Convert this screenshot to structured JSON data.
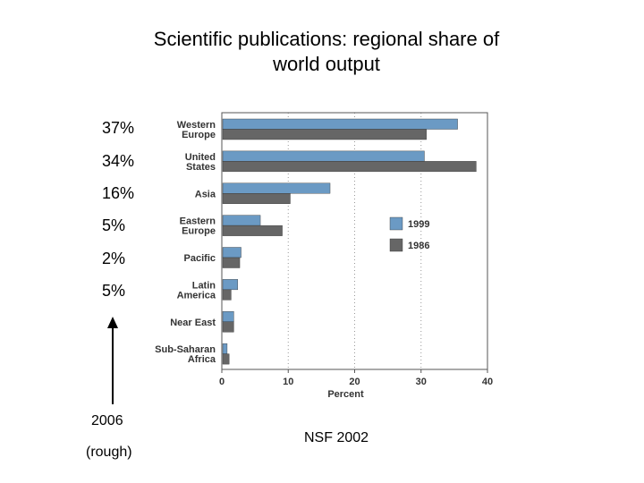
{
  "slide": {
    "title_line1": "Scientific publications: regional share of",
    "title_line2": "world output",
    "shares_2006": [
      "37%",
      "34%",
      "16%",
      "5%",
      "2%",
      "5%"
    ],
    "year_label": "2006",
    "rough_label": "(rough)",
    "source": "NSF 2002"
  },
  "chart_data": {
    "type": "bar",
    "orientation": "horizontal",
    "categories": [
      [
        "Western",
        "Europe"
      ],
      [
        "United",
        "States"
      ],
      [
        "Asia"
      ],
      [
        "Eastern",
        "Europe"
      ],
      [
        "Pacific"
      ],
      [
        "Latin",
        "America"
      ],
      [
        "Near East"
      ],
      [
        "Sub-Saharan",
        "Africa"
      ]
    ],
    "series": [
      {
        "name": "1999",
        "color": "#6b9ac4",
        "values": [
          35.5,
          30.5,
          16.3,
          5.8,
          2.9,
          2.4,
          1.8,
          0.8
        ]
      },
      {
        "name": "1986",
        "color": "#666666",
        "values": [
          30.8,
          38.3,
          10.3,
          9.1,
          2.7,
          1.4,
          1.8,
          1.1
        ]
      }
    ],
    "xlabel": "Percent",
    "xlim": [
      0,
      40
    ],
    "xticks": [
      0,
      10,
      20,
      30,
      40
    ],
    "grid": "vertical dotted",
    "legend_position": "right"
  }
}
